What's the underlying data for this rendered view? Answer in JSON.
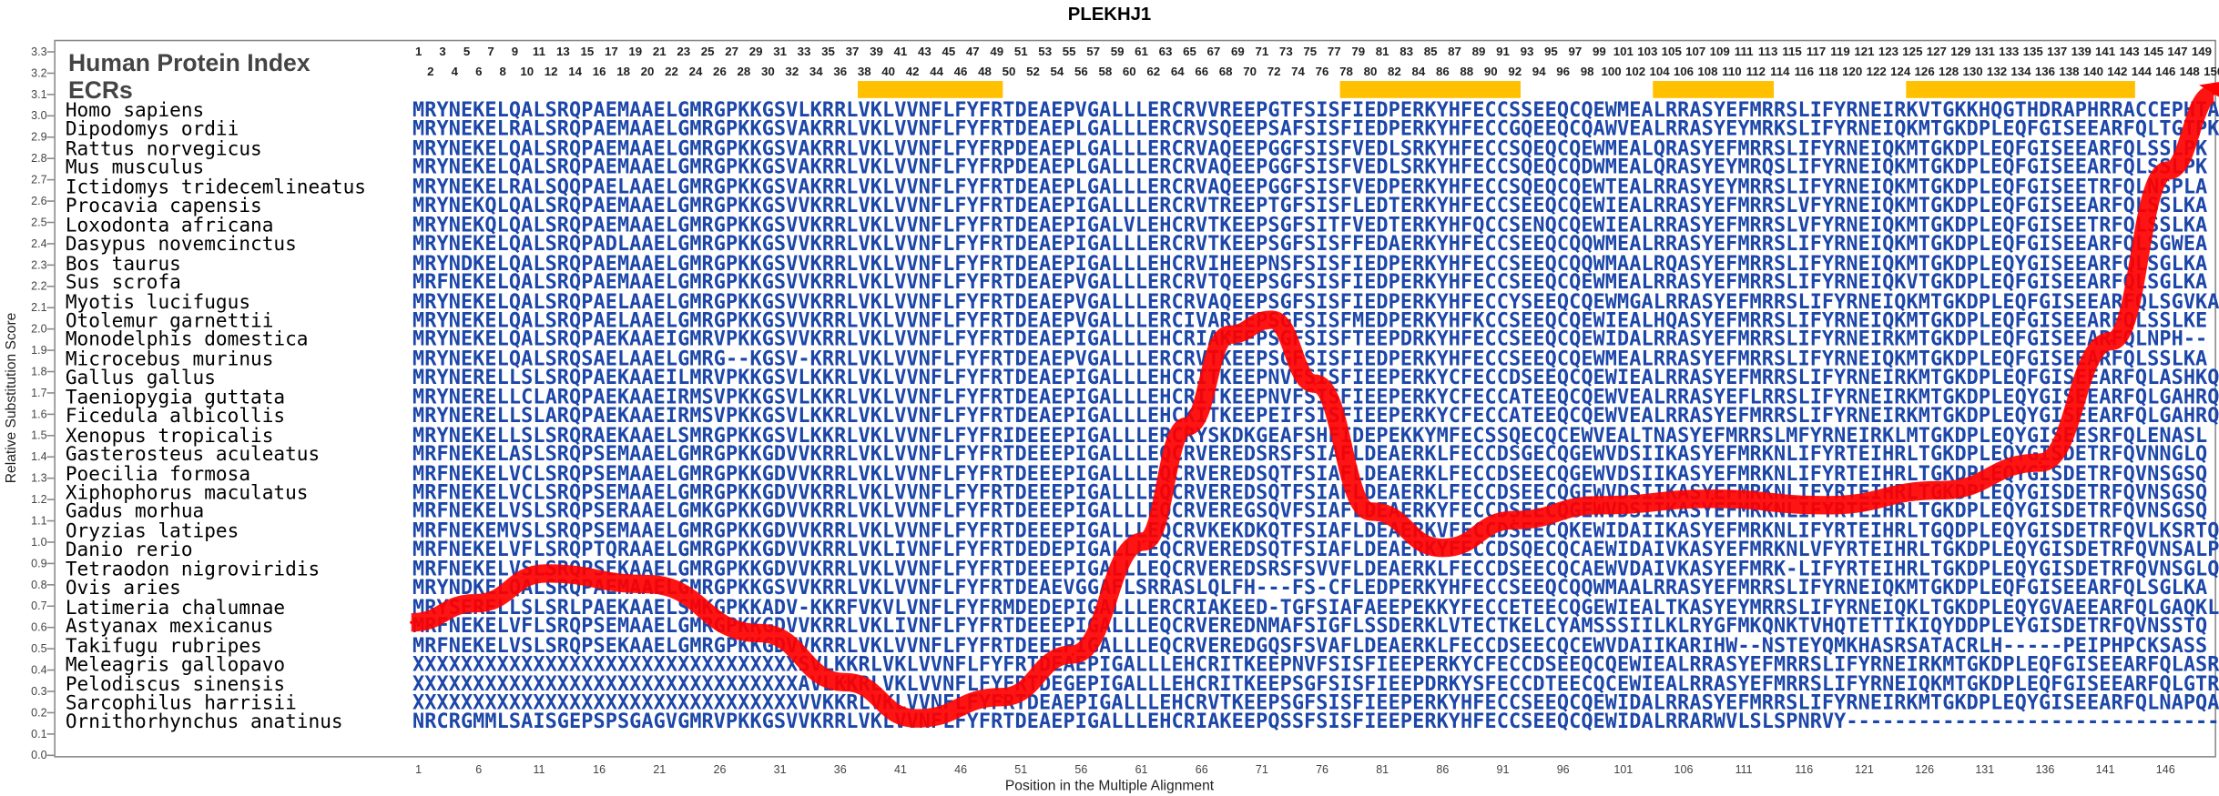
{
  "title": "PLEKHJ1",
  "header": {
    "index_label": "Human Protein Index",
    "ecr_label": "ECRs"
  },
  "colors": {
    "sequence": "#1c46a8",
    "ecr": "#ffc000",
    "curve": "#ff0000"
  },
  "ruler_top": [
    1,
    3,
    5,
    7,
    9,
    11,
    13,
    15,
    17,
    19,
    21,
    23,
    25,
    27,
    29,
    31,
    33,
    35,
    37,
    39,
    41,
    43,
    45,
    47,
    49,
    51,
    53,
    55,
    57,
    59,
    61,
    63,
    65,
    67,
    69,
    71,
    73,
    75,
    77,
    79,
    81,
    83,
    85,
    87,
    89,
    91,
    93,
    95,
    97,
    99,
    101,
    103,
    105,
    107,
    109,
    111,
    113,
    115,
    117,
    119,
    121,
    123,
    125,
    127,
    129,
    131,
    133,
    135,
    137,
    139,
    141,
    143,
    145,
    147,
    149
  ],
  "ruler_bottom": [
    2,
    4,
    6,
    8,
    10,
    12,
    14,
    16,
    18,
    20,
    22,
    24,
    26,
    28,
    30,
    32,
    34,
    36,
    38,
    40,
    42,
    44,
    46,
    48,
    50,
    52,
    54,
    56,
    58,
    60,
    62,
    64,
    66,
    68,
    70,
    72,
    74,
    76,
    78,
    80,
    82,
    84,
    86,
    88,
    90,
    92,
    94,
    96,
    98,
    100,
    102,
    104,
    106,
    108,
    110,
    112,
    114,
    116,
    118,
    120,
    122,
    124,
    126,
    128,
    130,
    132,
    134,
    136,
    138,
    140,
    142,
    144,
    146,
    148,
    150
  ],
  "ecrs": [
    {
      "start": 38,
      "end": 50
    },
    {
      "start": 78,
      "end": 93
    },
    {
      "start": 104,
      "end": 114
    },
    {
      "start": 125,
      "end": 144
    }
  ],
  "rows": [
    {
      "species": "Homo sapiens",
      "seq": "MRYNEKELQALSRQPAEMAAELGMRGPKKGSVLKRRLVKLVVNFLFYFRTDEAEPVGALLLERCRVVREEPGTFSISFIEDPERKYHFECCSSEEQCQEWMEALRRASYEFMRRSLIFYRNEIRKVTGKKHQGTHDRAPHRRACCEPHTA"
    },
    {
      "species": "Dipodomys ordii",
      "seq": "MRYNEKELRALSRQPAEMAAELGMRGPKKGSVAKRRLVKLVVNFLFYFRTDEAEPLGALLLERCRVSQEEPSAFSISFIEDPERKYHFECCGQEEQCQAWVEALRRASYEYMRKSLIFYRNEIQKMTGKDPLEQFGISEEARFQLTGTPK"
    },
    {
      "species": "Rattus norvegicus",
      "seq": "MRYNEKELQALSRQPAEMAAELGMRGPKKGSVAKRRLVKLVVNFLFYFRPDEAEPLGALLLERCRVAQEEPGGFSISFVEDLSRKYHFECCSQEQCQEWMEALQRASYEFMRRSLIFYRNEIQKMTGKDPLEQFGISEEARFQLSSLPK"
    },
    {
      "species": "Mus musculus",
      "seq": "MRYNEKELQALSRQPAEMAAELGMRGPKKGSVAKRRLVKLVVNFLFYFRPDEAEPLGALLLERCRVAQEEPGGFSISFVEDLSRKYHFECCSQEQCQDWMEALQRASYEYMRQSLIFYRNEIQKMTGKDPLEQFGISEEARFQLSSLPK"
    },
    {
      "species": "Ictidomys tridecemlineatus",
      "seq": "MRYNEKELRALSQQPAELAAELGMRGPKKGSVAKRRLVKLVVNFLFYFRTDEAEPLGALLLERCRVAQEEPGGFSISFVEDPERKYHFECCSQEQCQEWTEALRRASYEYMRRSLIFYRNEIQKMTGKDPLEQFGISEETRFQLNSPLA"
    },
    {
      "species": "Procavia capensis",
      "seq": "MRYNEKQLQALSRQPAEMAAELGMRGPKKGSVVKRRLVKLVVNFLFYFRTDEAEPIGALLLERCRVTREEPTGFSISFLEDTERKYHFECCSEEQCQEWIEALRRASYEFMRRSLVFYRNEIQKMTGKDPLEQFGISEEARFQLSSLKA"
    },
    {
      "species": "Loxodonta africana",
      "seq": "MRYNEKQLQALSRQPAEMAAELGMRGPKKGSVVKRRLVKLVVNFLFYFRTDEAEPIGALVLEHCRVTKEEPSGFSITFVEDTERKYHFQCCSENQCQEWIEALRRASYEFMRRSLVFYRNEIQKMTGKDPLEQFGISEETRFQLSSLKA"
    },
    {
      "species": "Dasypus novemcinctus",
      "seq": "MRYNEKELQALSRQPADLAAELGMRGPKKGSVVKRRLVKLVVNFLFYFRTDEAEPIGALLLERCRVTKEEPSGFSISFFEDAERKYHFECCSEEQCQQWMEALRRASYEFMRRSLIFYRNEIQKMTGKDPLEQFGISEEARFQLSGWEA"
    },
    {
      "species": "Bos taurus",
      "seq": "MRYNDKELQALSRQPAEMAAELGMRGPKKGSVVKRRLVKLVVNFLFYFRTDEAEPIGALLLEHCRVIHEEPNSFSISFIEDPERKYHFECCSEEQCQQWMAALRQASYEFMRRSLIFYRNEIQKMTGKDPLEQYGISEEARFQLSGLKA"
    },
    {
      "species": "Sus scrofa",
      "seq": "MRFNEKELQALSRQPAEMAAELGMRGPKKGSVVKRRLVKLVVNFLFYFRTDEAEPVGALLLERCRVTQEEPSGFSISFIEDPERKYHFECCSEEQCQEWMEALRRASYEFMRRSLIFYRNEIQKVTGKDPLEQFGISEEARFQLSGLKA"
    },
    {
      "species": "Myotis lucifugus",
      "seq": "MRYNEKELQALSRQPAELAAELGMRGPKKGSVVKRRLVKLVVNFLFYFRTDEAEPVGALLLERCRVAQEEPSGFSISFIEDPERKYHFECCYSEEQCQEWMGALRRASYEFMRRSLIFYRNEIQKMTGKDPLEQFGISEEARFQLSGVKA"
    },
    {
      "species": "Otolemur garnettii",
      "seq": "MRYNEKELQALSRQPAELAAELGMRGPKKGSVVKRRLVKLVVNFLFYFRTDEAEPVGALLLERCIVAREEPSGFSISFMEDPERKYHFKCCSEEQCQEWIEALHQASYEFMRRSLIFYRNEIQKMTGKDPLEQFGISEEARFQLSSLKE"
    },
    {
      "species": "Monodelphis domestica",
      "seq": "MRYNEKELQALSRQPAEKAAEIGMRVPKKGSVVKRRLVKLVVNFLFYFRTDEAEPIGALLLEHCRIAKEEPSGFSISFTEEPDRKYHFECCSEEQCQEWIDALRRASYEFMRRSLIFYRNEIRKMTGKDPLEQFGISEEARFQLNPH--"
    },
    {
      "species": "Microcebus murinus",
      "seq": "MRYNEKELQALSRQSAELAAELGMRG--KGSV-KRRLVKLVVNFLFYFRTDEAEPVGALLLERCRVTKEEPSGFSISFIEDPERKYHFECCSEEQCQEWMEALRRASYEFMRRSLIFYRNEIQKMTGKDPLEQFGISEEARFQLSSLKA"
    },
    {
      "species": "Gallus gallus",
      "seq": "MRYNERELLSLSRQPAEKAAEILMRVPKKGSVLKKRLVKLVVNFLFYFRTDEAEPIGALLLEHCRITKEEPNVFSISFIEEPERKYCFECCDSEEQCQEWIEALRRASYEFMRRSLIFYRNEIRKMTGKDPLEQFGISEEARFQLASHKQ"
    },
    {
      "species": "Taeniopygia guttata",
      "seq": "MRYNERELLCLARQPAEKAAEIRMSVPKKGSVLKKRLVKLVVNFLFYFRTDEAEPIGALLLEHCRITKEEPNVFSISFIEEPERKYCFECCATEEQCQEWVEALRRASYEFLRRSLIFYRNEIRKMTGKDPLEQYGISEEARFQLGAHRQ"
    },
    {
      "species": "Ficedula albicollis",
      "seq": "MRYNERELLSLARQPAEKAAEIRMSVPKKGSVLKKRLVKLVVNFLFYFRTDEAEPIGALLLEHCKITKEEPEIFSISFIEEPERKYCFECCATEEQCQEWVEALRRASYEFMRRSLIFYRNEIRKMTGKDPLEQYGISEEARFQLGAHRQ"
    },
    {
      "species": "Xenopus tropicalis",
      "seq": "MRYNEKELLSLSRQRAEKAAELSMRGPKKGSVLKKRLVKLVVNFLFYFRIDEEEPIGALLLERCRYSKDKGEAFSHFIDEPEKKYMFECSSQECQCEWVEALTNASYEFMRRSLMFYRNEIRKLMTGKDPLEQYGISEESRFQLENASL"
    },
    {
      "species": "Gasterosteus aculeatus",
      "seq": "MRFNEKELASLSRQPSEMAAELGMRGPKKGDVVKRRLVKLVVNFLFYFRTDEEEPIGALLLEQCRVEREDSRSFSIAFLDEAERKLFECCDSGECQGEWVDSIIKASYEFMRKNLIFYRTEIHRLTGKDPLEQYGISDETRFQVNNGLQ"
    },
    {
      "species": "Poecilia formosa",
      "seq": "MRFNEKELVCLSRQPSEMAAELGMRGPKKGDVVKRRLVKLVVNFLFYFRTDEEEPIGALLLEQCRVEREDSQTFSIAFLDEAERKLFECCDSEECQGEWVDSIIKASYEFMRKNLIFYRTEIHRLTGKDPLEQYGISDETRFQVNSGSQ"
    },
    {
      "species": "Xiphophorus maculatus",
      "seq": "MRFNEKELVCLSRQPSEMAAELGMRGPKKGDVVKRRLVKLVVNFLFYFRTDEEEPIGALLLEQCRVEREDSQTFSIAFLDEAERKLFECCDSEECQGEWVDSIIKASYEFMRKNLIFYRTEIHRLTGKDPLEQYGISDETRFQVNSGSQ"
    },
    {
      "species": "Gadus morhua",
      "seq": "MRFNEKELVSLSRQPSERAAELGMKGPKKGDVVKRRLVKLVVNFLFYFRTDEEEPIGALLLEQCRVEREGSQVFSIAFLDEAERKYFECCDSEECQGEWVDSIIKASYEFMRKNLIFYRTEIHRLTGKDPLEQYGISDETRFQVNSGSQ"
    },
    {
      "species": "Oryzias latipes",
      "seq": "MRFNEKEMVSLSRQPSEMAAELGMRGPKKGDVVKRRLVKLVVNFLFYFRTDEEEPIGALLLEQCRVKEKDKQTFSIAFLDEAERKVFECCDSEECQKEWIDAIIKASYEFMRKNLIFYRTEIHRLTGQDPLEQYGISDETRFQVLKSRTQ"
    },
    {
      "species": "Danio rerio",
      "seq": "MRFNEKELVFLSRQPTQRAAELGMRGPKKGDVVKRRLVKLIVNFLFYFRTDEDEPIGALLLEQCRVEREDSQTFSIAFLDEAERKYFECCDSQECQCAEWIDAIVKASYEFMRKNLVFYRTEIHRLTGKDPLEQYGISDETRFQVNSALP"
    },
    {
      "species": "Tetraodon nigroviridis",
      "seq": "MRFNEKELVSLSRQPSEKAAELGMRGPKKGDVVKRRLVKLVVNFLFYFRTDEEEPIGALLLEQCRVEREDSRSFSVVFLDEAERKLFECCDSEECQCAEWVDAIVKASYEFMRK-LIFYRTEIHRLTGKDPLEQYGISDETRFQVNSGLQ"
    },
    {
      "species": "Ovis aries",
      "seq": "MRYNDKELQALSRQPAEMAAELGMRGPKKGSVVKRRLVKLVVNFLFYFRTDEAEVGGAFLSRRASLQLFH---FS-CFLEDPERKYHFECCSEEQCQQWMAALRRASYEFMRRSLIFYRNEIQKMTGKDPLEQFGISEEARFQLSGLKA"
    },
    {
      "species": "Latimeria chalumnae",
      "seq": "MRYSERELLSLSRLPAEKAAELSMKGPKKADV-KKRFVKVLVNFLFYFRMDEDEPIGALLLERCRIAKEED-TGFSIAFAEEPEKKYFECCETEECQGEWIEALTKASYEYMRRSLIFYRNEIQKLTGKDPLEQYGVAEEARFQLGAQKL"
    },
    {
      "species": "Astyanax mexicanus",
      "seq": "MRFNEKELVFLSRQPSEMAAELGMRGPKKGDVVKRRLVKLIVNFLFYFRTDEEEPIGALLLEQCRVEREDNMAFSIGFLSSDERKLVTECTKELCYAMSSSIILKLRYGFMKQNKTVHQTETTIKIQYDDPLEYGISDETRFQVNSSTQ"
    },
    {
      "species": "Takifugu rubripes",
      "seq": "MRFNEKELVSLSRQPSEKAAELGMRGPKKGDVVKRRLVKLVVNFLFYFRTDEEEPIGALLLEQCRVEREDGQSFSVAFLDEAERKLFECCDSEECQCEWVDAIIKARIHW--NSTEYQMKHASRSATACRLH-----PEIPHPCKSASS"
    },
    {
      "species": "Meleagris gallopavo",
      "seq": "XXXXXXXXXXXXXXXXXXXXXXXXXXXXXXXXSVLKKRLVKLVVNFLFYFRTDEAEPIGALLLEHCRITKEEPNVFSISFIEEPERKYCFECCDSEEQCQEWIEALRRASYEFMRRSLIFYRNEIRKMTGKDPLEQFGISEEARFQLASRKQ"
    },
    {
      "species": "Pelodiscus sinensis",
      "seq": "XXXXXXXXXXXXXXXXXXXXXXXXXXXXXXXXAVLKKRLVKLVVNFLFYFRTDEGEPIGALLLEHCRITKEEPSGFSISFIEEPDRKYSFECCDTEECQCEWIEALRRASYEFMRRSLIFYRNEIQKMTGKDPLEQFGISEEARFQLGTRKL"
    },
    {
      "species": "Sarcophilus harrisii",
      "seq": "XXXXXXXXXXXXXXXXXXXXXXXXXXXXXXXXVVKKRLVKLVVNFLFYFRTDEAEPIGALLLEHCRVTKEEPSGFSISFIEEPERKYHFECCSEEQCQEWIDALRRASYEFMRRSLIFYRNEIRKMTGKDPLEQYGISEEARFQLNAPQA"
    },
    {
      "species": "Ornithorhynchus anatinus",
      "seq": "NRCRGMMLSAISGEPSPSGAGVGMRVPKKGSVVKRRLVKLVVNFLFYFRTDEAEPIGALLLEHCRIAKEEPQSSFSISFIEEPERKYHFECCSEEQCQEWIDALRRARWVLSLSPNRVY-------------------------------"
    }
  ],
  "chart_data": {
    "type": "line",
    "title": "PLEKHJ1",
    "xlabel": "Position in the Multiple Alignment",
    "ylabel": "Relative Substitution Score",
    "xlim": [
      1,
      150
    ],
    "ylim": [
      0,
      3.3
    ],
    "xticks": [
      "1",
      "6",
      "11",
      "16",
      "21",
      "26",
      "31",
      "36",
      "41",
      "46",
      "51",
      "56",
      "61",
      "66",
      "71",
      "76",
      "81",
      "86",
      "91",
      "96",
      "101",
      "106",
      "111",
      "116",
      "121",
      "126",
      "131",
      "136",
      "141",
      "146"
    ],
    "yticks": [
      "0.0",
      "0.1",
      "0.2",
      "0.3",
      "0.4",
      "0.5",
      "0.6",
      "0.7",
      "0.8",
      "0.9",
      "1.0",
      "1.1",
      "1.2",
      "1.3",
      "1.4",
      "1.5",
      "1.6",
      "1.7",
      "1.8",
      "1.9",
      "2.0",
      "2.1",
      "2.2",
      "2.3",
      "2.4",
      "2.5",
      "2.6",
      "2.7",
      "2.8",
      "2.9",
      "3.0",
      "3.1",
      "3.2",
      "3.3"
    ],
    "series": [
      {
        "name": "Relative Substitution Score",
        "x": [
          0.4,
          5.7,
          11.6,
          19.9,
          29.3,
          36.4,
          42.3,
          49.4,
          55.3,
          61.2,
          64.8,
          68.3,
          71.8,
          75.4,
          80.1,
          86.0,
          91.9,
          99.0,
          108.4,
          117.9,
          127.3,
          135.6,
          141.5,
          146.2,
          150
        ],
        "y": [
          0.62,
          0.71,
          0.85,
          0.8,
          0.57,
          0.34,
          0.17,
          0.27,
          0.47,
          1.0,
          1.54,
          1.97,
          2.04,
          1.74,
          1.14,
          0.97,
          1.1,
          1.17,
          1.2,
          1.17,
          1.24,
          1.37,
          1.94,
          2.74,
          3.1
        ]
      }
    ]
  }
}
